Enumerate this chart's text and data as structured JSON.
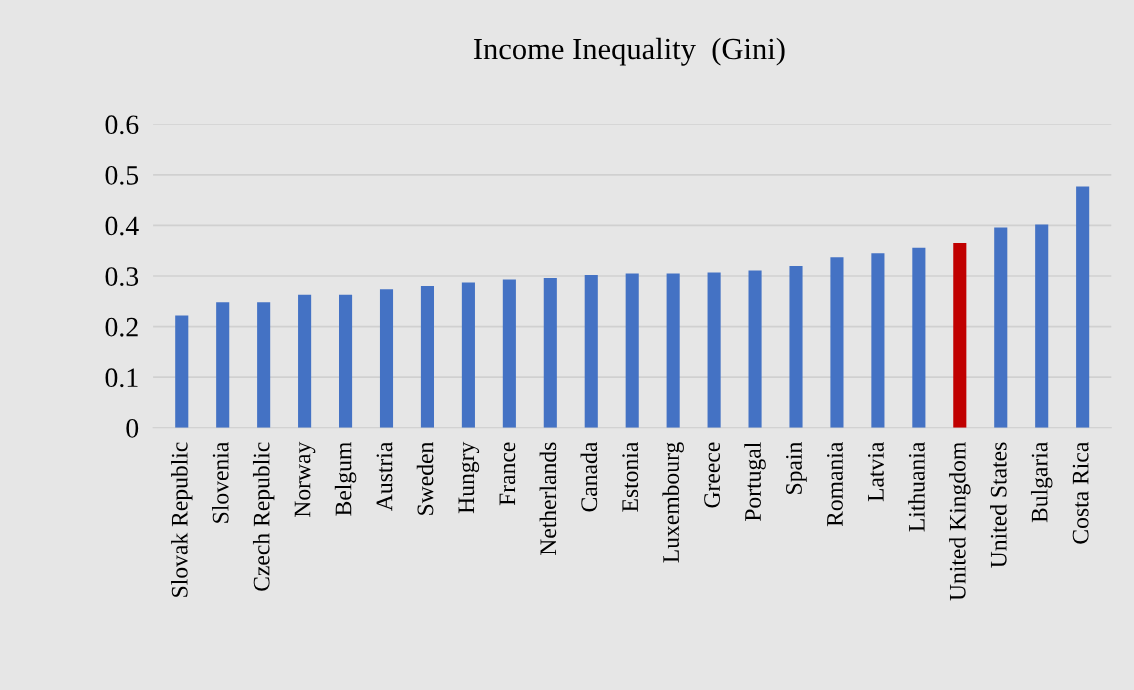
{
  "chart_data": {
    "type": "bar",
    "title": "Income Inequality  (Gini)",
    "categories": [
      "Slovak Republic",
      "Slovenia",
      "Czech Republic",
      "Norway",
      "Belgum",
      "Austria",
      "Sweden",
      "Hungry",
      "France",
      "Netherlands",
      "Canada",
      "Estonia",
      "Luxembourg",
      "Greece",
      "Portugal",
      "Spain",
      "Romania",
      "Latvia",
      "Lithuania",
      "United Kingdom",
      "United States",
      "Bulgaria",
      "Costa Rica"
    ],
    "values": [
      0.222,
      0.248,
      0.248,
      0.263,
      0.263,
      0.274,
      0.28,
      0.287,
      0.293,
      0.296,
      0.302,
      0.305,
      0.305,
      0.307,
      0.311,
      0.32,
      0.337,
      0.345,
      0.356,
      0.365,
      0.396,
      0.402,
      0.477
    ],
    "colors": [
      "#4472c4",
      "#4472c4",
      "#4472c4",
      "#4472c4",
      "#4472c4",
      "#4472c4",
      "#4472c4",
      "#4472c4",
      "#4472c4",
      "#4472c4",
      "#4472c4",
      "#4472c4",
      "#4472c4",
      "#4472c4",
      "#4472c4",
      "#4472c4",
      "#4472c4",
      "#4472c4",
      "#4472c4",
      "#c00000",
      "#4472c4",
      "#4472c4",
      "#4472c4"
    ],
    "ylim": [
      0,
      0.6
    ],
    "yticks": [
      {
        "value": 0,
        "label": "0"
      },
      0.1,
      0.2,
      0.3,
      0.4,
      0.5,
      0.6
    ],
    "grid": "y"
  }
}
